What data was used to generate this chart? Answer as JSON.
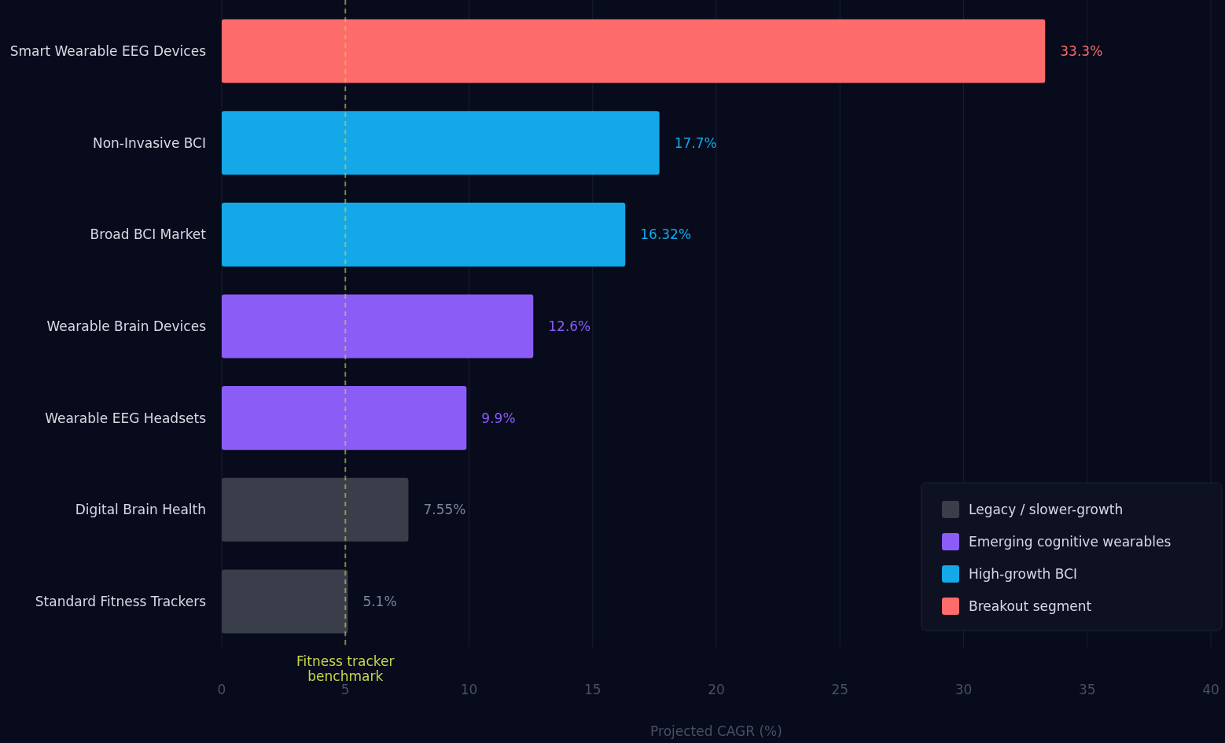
{
  "chart_data": {
    "type": "bar",
    "orientation": "horizontal",
    "categories": [
      "Smart Wearable EEG Devices",
      "Non-Invasive BCI",
      "Broad BCI Market",
      "Wearable Brain Devices",
      "Wearable EEG Headsets",
      "Digital Brain Health",
      "Standard Fitness Trackers"
    ],
    "series": [
      {
        "name": "Legacy / slower-growth",
        "color": "#3a3d4a",
        "values": [
          null,
          null,
          null,
          null,
          null,
          7.55,
          5.1
        ],
        "value_labels": [
          null,
          null,
          null,
          null,
          null,
          "7.55%",
          "5.1%"
        ]
      },
      {
        "name": "Emerging cognitive wearables",
        "color": "#8b5cf6",
        "values": [
          null,
          null,
          null,
          12.6,
          9.9,
          null,
          null
        ],
        "value_labels": [
          null,
          null,
          null,
          "12.6%",
          "9.9%",
          null,
          null
        ]
      },
      {
        "name": "High-growth BCI",
        "color": "#14a8e8",
        "values": [
          null,
          17.7,
          16.32,
          null,
          null,
          null,
          null
        ],
        "value_labels": [
          null,
          "17.7%",
          "16.32%",
          null,
          null,
          null,
          null
        ]
      },
      {
        "name": "Breakout segment",
        "color": "#fe6b6b",
        "values": [
          33.3,
          null,
          null,
          null,
          null,
          null,
          null
        ],
        "value_labels": [
          "33.3%",
          null,
          null,
          null,
          null,
          null,
          null
        ]
      }
    ],
    "xlim": [
      0,
      40
    ],
    "xticks": [
      0,
      5,
      10,
      15,
      20,
      25,
      30,
      35,
      40
    ],
    "xlabel": "Projected CAGR (%)",
    "ref_lines": [
      {
        "axis": "x",
        "value": 5,
        "label": "Fitness tracker benchmark",
        "color": "#c8d64a",
        "line_style": "dashed"
      }
    ],
    "grid": "x",
    "legend": "bottom right"
  }
}
